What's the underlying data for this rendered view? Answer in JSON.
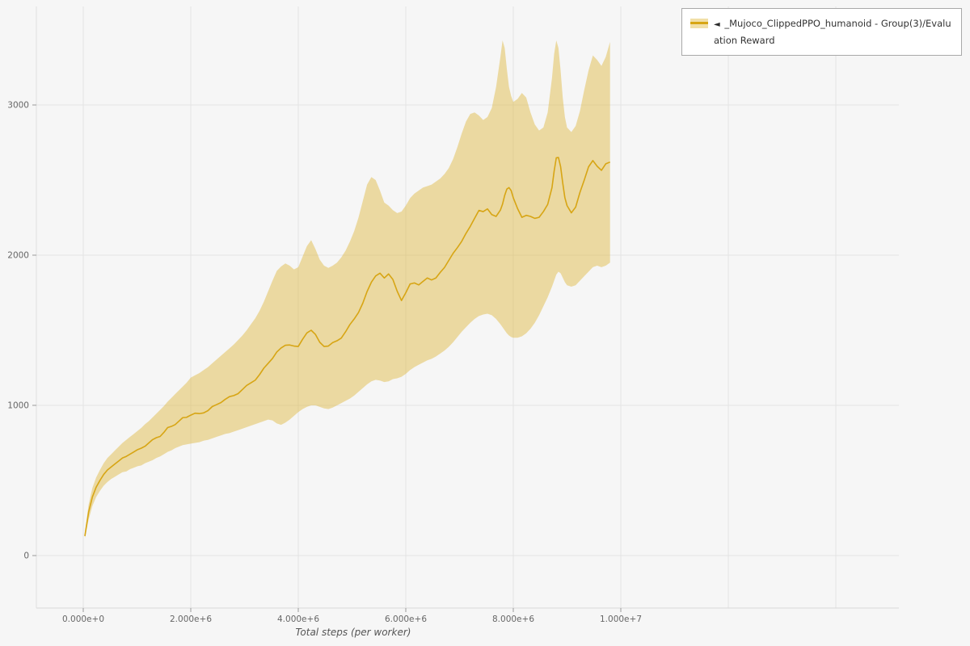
{
  "legend": {
    "arrow": "◄",
    "label": "_Mujoco_ClippedPPO_humanoid - Group(3)/Evaluation Reward"
  },
  "chart_data": {
    "type": "line",
    "title": "",
    "xlabel": "Total steps (per worker)",
    "ylabel": "",
    "x_unit": "steps (values below in millions)",
    "xlim": [
      0,
      10000000
    ],
    "ylim": [
      -360,
      3660
    ],
    "grid": true,
    "legend_position": "top-right",
    "grid_color": "#e4e4e4",
    "background_color": "#f6f6f6",
    "x_grid": [
      0,
      2000000,
      4000000,
      6000000,
      8000000,
      10000000,
      12000000,
      14000000
    ],
    "x_ticks": [
      {
        "value": 0,
        "label": "0.000e+0"
      },
      {
        "value": 2000000,
        "label": "2.000e+6"
      },
      {
        "value": 4000000,
        "label": "4.000e+6"
      },
      {
        "value": 6000000,
        "label": "6.000e+6"
      },
      {
        "value": 8000000,
        "label": "8.000e+6"
      },
      {
        "value": 10000000,
        "label": "1.000e+7"
      }
    ],
    "y_ticks": [
      {
        "value": 0,
        "label": "0"
      },
      {
        "value": 1000,
        "label": "1000"
      },
      {
        "value": 2000,
        "label": "2000"
      },
      {
        "value": 3000,
        "label": "3000"
      }
    ],
    "series": [
      {
        "name": "Evaluation Reward",
        "color": "#d7a514",
        "band_color": "rgba(219,170,24,0.38)",
        "points_format": [
          "x_millions",
          "band_lower",
          "mean",
          "band_upper"
        ],
        "points": [
          [
            0.03,
            115,
            130,
            150
          ],
          [
            0.1,
            240,
            290,
            340
          ],
          [
            0.17,
            330,
            390,
            450
          ],
          [
            0.24,
            390,
            455,
            520
          ],
          [
            0.31,
            430,
            500,
            570
          ],
          [
            0.38,
            465,
            540,
            615
          ],
          [
            0.45,
            490,
            570,
            650
          ],
          [
            0.52,
            510,
            590,
            675
          ],
          [
            0.59,
            525,
            610,
            700
          ],
          [
            0.66,
            540,
            630,
            725
          ],
          [
            0.73,
            555,
            650,
            750
          ],
          [
            0.8,
            560,
            660,
            770
          ],
          [
            0.87,
            575,
            675,
            790
          ],
          [
            0.94,
            585,
            690,
            810
          ],
          [
            1.01,
            595,
            705,
            830
          ],
          [
            1.08,
            600,
            715,
            850
          ],
          [
            1.15,
            615,
            728,
            875
          ],
          [
            1.22,
            625,
            750,
            895
          ],
          [
            1.29,
            635,
            772,
            920
          ],
          [
            1.36,
            650,
            785,
            945
          ],
          [
            1.43,
            660,
            793,
            970
          ],
          [
            1.5,
            675,
            820,
            995
          ],
          [
            1.57,
            690,
            852,
            1025
          ],
          [
            1.64,
            700,
            860,
            1050
          ],
          [
            1.71,
            715,
            872,
            1075
          ],
          [
            1.78,
            725,
            895,
            1100
          ],
          [
            1.85,
            735,
            918,
            1125
          ],
          [
            1.92,
            740,
            920,
            1150
          ],
          [
            2.0,
            745,
            935,
            1185
          ],
          [
            2.08,
            750,
            948,
            1200
          ],
          [
            2.16,
            755,
            945,
            1215
          ],
          [
            2.24,
            765,
            950,
            1235
          ],
          [
            2.32,
            770,
            965,
            1255
          ],
          [
            2.4,
            780,
            992,
            1280
          ],
          [
            2.48,
            790,
            1005,
            1305
          ],
          [
            2.56,
            800,
            1018,
            1330
          ],
          [
            2.64,
            810,
            1040,
            1355
          ],
          [
            2.72,
            815,
            1058,
            1380
          ],
          [
            2.8,
            825,
            1065,
            1405
          ],
          [
            2.88,
            835,
            1078,
            1435
          ],
          [
            2.96,
            845,
            1105,
            1465
          ],
          [
            3.04,
            855,
            1133,
            1500
          ],
          [
            3.12,
            865,
            1150,
            1540
          ],
          [
            3.2,
            875,
            1168,
            1580
          ],
          [
            3.28,
            885,
            1205,
            1630
          ],
          [
            3.36,
            895,
            1248,
            1690
          ],
          [
            3.44,
            905,
            1280,
            1760
          ],
          [
            3.52,
            900,
            1312,
            1830
          ],
          [
            3.6,
            880,
            1355,
            1895
          ],
          [
            3.68,
            870,
            1382,
            1925
          ],
          [
            3.76,
            885,
            1400,
            1945
          ],
          [
            3.84,
            905,
            1402,
            1930
          ],
          [
            3.92,
            930,
            1395,
            1905
          ],
          [
            4.0,
            955,
            1392,
            1920
          ],
          [
            4.08,
            975,
            1440,
            1990
          ],
          [
            4.16,
            990,
            1482,
            2060
          ],
          [
            4.24,
            1000,
            1500,
            2100
          ],
          [
            4.32,
            1000,
            1472,
            2040
          ],
          [
            4.4,
            990,
            1420,
            1970
          ],
          [
            4.48,
            980,
            1392,
            1930
          ],
          [
            4.56,
            975,
            1395,
            1915
          ],
          [
            4.64,
            985,
            1418,
            1930
          ],
          [
            4.72,
            1000,
            1430,
            1950
          ],
          [
            4.8,
            1015,
            1448,
            1985
          ],
          [
            4.88,
            1030,
            1490,
            2030
          ],
          [
            4.96,
            1045,
            1538,
            2090
          ],
          [
            5.04,
            1065,
            1575,
            2160
          ],
          [
            5.12,
            1090,
            1618,
            2250
          ],
          [
            5.2,
            1115,
            1680,
            2360
          ],
          [
            5.28,
            1140,
            1758,
            2470
          ],
          [
            5.36,
            1160,
            1820,
            2520
          ],
          [
            5.44,
            1170,
            1862,
            2500
          ],
          [
            5.52,
            1165,
            1880,
            2430
          ],
          [
            5.6,
            1155,
            1848,
            2350
          ],
          [
            5.68,
            1160,
            1875,
            2330
          ],
          [
            5.76,
            1175,
            1838,
            2300
          ],
          [
            5.84,
            1180,
            1760,
            2280
          ],
          [
            5.92,
            1190,
            1698,
            2290
          ],
          [
            6.0,
            1210,
            1750,
            2330
          ],
          [
            6.08,
            1235,
            1808,
            2380
          ],
          [
            6.16,
            1255,
            1815,
            2410
          ],
          [
            6.24,
            1270,
            1802,
            2430
          ],
          [
            6.32,
            1285,
            1825,
            2450
          ],
          [
            6.4,
            1300,
            1848,
            2460
          ],
          [
            6.48,
            1310,
            1835,
            2470
          ],
          [
            6.56,
            1325,
            1848,
            2490
          ],
          [
            6.64,
            1345,
            1885,
            2510
          ],
          [
            6.72,
            1365,
            1918,
            2540
          ],
          [
            6.8,
            1390,
            1965,
            2580
          ],
          [
            6.88,
            1420,
            2012,
            2640
          ],
          [
            6.96,
            1455,
            2050,
            2720
          ],
          [
            7.04,
            1490,
            2092,
            2810
          ],
          [
            7.12,
            1520,
            2145,
            2890
          ],
          [
            7.2,
            1550,
            2192,
            2940
          ],
          [
            7.28,
            1575,
            2245,
            2950
          ],
          [
            7.36,
            1595,
            2298,
            2930
          ],
          [
            7.44,
            1605,
            2290,
            2900
          ],
          [
            7.52,
            1610,
            2308,
            2920
          ],
          [
            7.6,
            1600,
            2270,
            2980
          ],
          [
            7.68,
            1575,
            2258,
            3120
          ],
          [
            7.76,
            1540,
            2300,
            3320
          ],
          [
            7.8,
            1520,
            2340,
            3430
          ],
          [
            7.84,
            1500,
            2398,
            3380
          ],
          [
            7.88,
            1480,
            2440,
            3240
          ],
          [
            7.92,
            1465,
            2450,
            3120
          ],
          [
            7.96,
            1455,
            2430,
            3060
          ],
          [
            8.0,
            1450,
            2382,
            3020
          ],
          [
            8.08,
            1450,
            2310,
            3040
          ],
          [
            8.16,
            1460,
            2252,
            3080
          ],
          [
            8.24,
            1480,
            2265,
            3050
          ],
          [
            8.32,
            1510,
            2258,
            2950
          ],
          [
            8.4,
            1550,
            2245,
            2870
          ],
          [
            8.48,
            1600,
            2252,
            2830
          ],
          [
            8.56,
            1660,
            2290,
            2850
          ],
          [
            8.64,
            1720,
            2338,
            2950
          ],
          [
            8.72,
            1790,
            2450,
            3180
          ],
          [
            8.76,
            1830,
            2560,
            3340
          ],
          [
            8.8,
            1870,
            2648,
            3430
          ],
          [
            8.84,
            1890,
            2650,
            3380
          ],
          [
            8.88,
            1880,
            2590,
            3230
          ],
          [
            8.92,
            1850,
            2480,
            3050
          ],
          [
            8.96,
            1820,
            2382,
            2920
          ],
          [
            9.0,
            1800,
            2330,
            2850
          ],
          [
            9.08,
            1790,
            2282,
            2820
          ],
          [
            9.16,
            1800,
            2320,
            2860
          ],
          [
            9.24,
            1830,
            2418,
            2960
          ],
          [
            9.32,
            1860,
            2500,
            3100
          ],
          [
            9.4,
            1890,
            2588,
            3230
          ],
          [
            9.48,
            1920,
            2630,
            3330
          ],
          [
            9.56,
            1930,
            2592,
            3300
          ],
          [
            9.64,
            1920,
            2565,
            3260
          ],
          [
            9.72,
            1930,
            2608,
            3320
          ],
          [
            9.8,
            1950,
            2620,
            3420
          ]
        ]
      }
    ]
  }
}
